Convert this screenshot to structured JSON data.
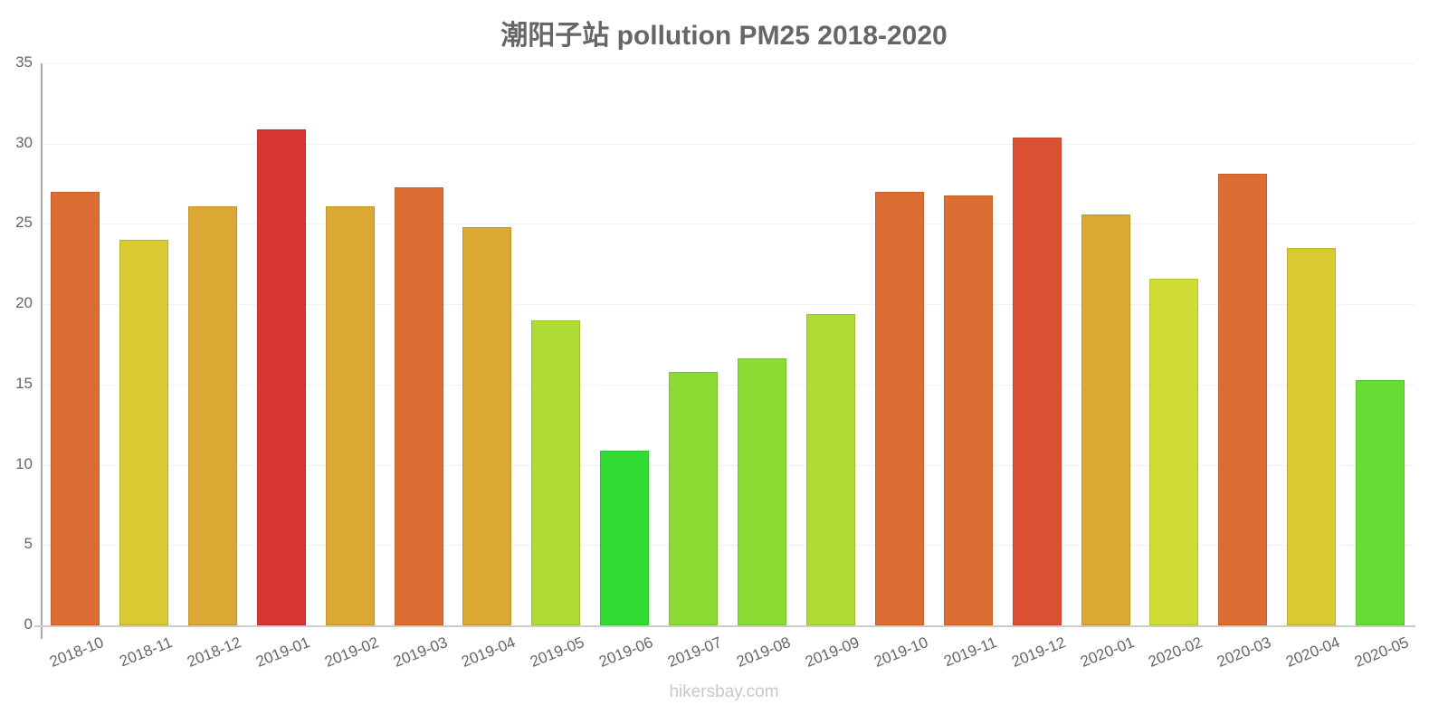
{
  "chart_data": {
    "type": "bar",
    "title": "潮阳子站 pollution PM25 2018-2020",
    "xlabel": "",
    "ylabel": "",
    "ylim": [
      0,
      35
    ],
    "yticks": [
      0,
      5,
      10,
      15,
      20,
      25,
      30,
      35
    ],
    "grid": true,
    "legend": null,
    "categories": [
      "2018-10",
      "2018-11",
      "2018-12",
      "2019-01",
      "2019-02",
      "2019-03",
      "2019-04",
      "2019-05",
      "2019-06",
      "2019-07",
      "2019-08",
      "2019-09",
      "2019-10",
      "2019-11",
      "2019-12",
      "2020-01",
      "2020-02",
      "2020-03",
      "2020-04",
      "2020-05"
    ],
    "values": [
      27.0,
      24.0,
      26.1,
      30.9,
      26.1,
      27.3,
      24.8,
      19.0,
      10.9,
      15.8,
      16.6,
      19.4,
      27.0,
      26.8,
      30.4,
      25.6,
      21.6,
      28.1,
      23.5,
      15.3
    ],
    "colors": [
      "#dd6e33",
      "#d9c933",
      "#dba834",
      "#da3535",
      "#dba834",
      "#dd6e33",
      "#dba834",
      "#aedc34",
      "#33dc35",
      "#8adc35",
      "#8adc35",
      "#aedc34",
      "#dd6e33",
      "#dd6e33",
      "#db4f33",
      "#dba834",
      "#cfdc35",
      "#dd6e33",
      "#d9c933",
      "#66dc35"
    ]
  },
  "footer": {
    "watermark": "hikersbay.com"
  }
}
